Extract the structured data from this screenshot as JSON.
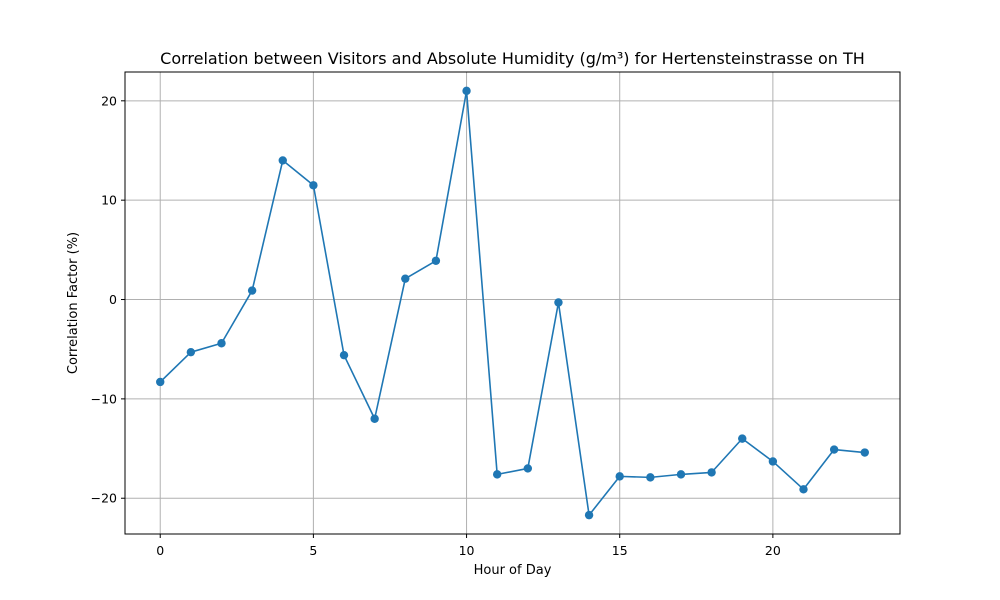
{
  "chart_data": {
    "type": "line",
    "title": "Correlation between Visitors and Absolute Humidity (g/m³) for Hertensteinstrasse on TH",
    "xlabel": "Hour of Day",
    "ylabel": "Correlation Factor (%)",
    "xlim": [
      -1.15,
      24.15
    ],
    "ylim": [
      -23.6,
      22.9
    ],
    "xticks": [
      0,
      5,
      10,
      15,
      20
    ],
    "xtick_labels": [
      "0",
      "5",
      "10",
      "15",
      "20"
    ],
    "yticks": [
      -20,
      -10,
      0,
      10,
      20
    ],
    "ytick_labels": [
      "−20",
      "−10",
      "0",
      "10",
      "20"
    ],
    "grid": true,
    "series": [
      {
        "color": "#1f77b4",
        "marker": "circle",
        "x": [
          0,
          1,
          2,
          3,
          4,
          5,
          6,
          7,
          8,
          9,
          10,
          11,
          12,
          13,
          14,
          15,
          16,
          17,
          18,
          19,
          20,
          21,
          22,
          23
        ],
        "y": [
          -8.3,
          -5.3,
          -4.4,
          0.9,
          14.0,
          11.5,
          -5.6,
          -12.0,
          2.1,
          3.9,
          21.0,
          -17.6,
          -17.0,
          -0.3,
          -21.7,
          -17.8,
          -17.9,
          -17.6,
          -17.4,
          -14.0,
          -16.3,
          -19.1,
          -15.1,
          -15.4
        ]
      }
    ]
  }
}
